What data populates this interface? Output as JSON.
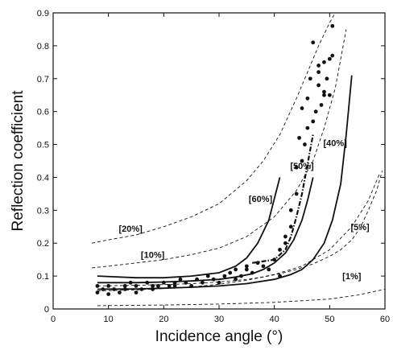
{
  "chart_data": {
    "type": "scatter",
    "title": "",
    "xlabel": "Incidence angle (°)",
    "ylabel": "Reflection coefficient",
    "xlim": [
      0,
      60
    ],
    "ylim": [
      0,
      0.9
    ],
    "xticks": [
      "0",
      "10",
      "20",
      "30",
      "40",
      "50",
      "60"
    ],
    "yticks": [
      "0",
      "0.1",
      "0.2",
      "0.3",
      "0.4",
      "0.5",
      "0.6",
      "0.7",
      "0.8",
      "0.9"
    ],
    "grid": false,
    "legend": "none",
    "annotations": [
      {
        "text": "[20%]",
        "x": 14,
        "y": 0.235
      },
      {
        "text": "[10%]",
        "x": 18,
        "y": 0.155
      },
      {
        "text": "[60%]",
        "x": 37.5,
        "y": 0.325
      },
      {
        "text": "[50%]",
        "x": 45,
        "y": 0.425
      },
      {
        "text": "[40%]",
        "x": 51,
        "y": 0.495
      },
      {
        "text": "[5%]",
        "x": 55.5,
        "y": 0.24
      },
      {
        "text": "[1%]",
        "x": 54,
        "y": 0.09
      }
    ],
    "series": [
      {
        "style": "dashed",
        "x": [
          7,
          10,
          15,
          20,
          25,
          30,
          35,
          38,
          41,
          44,
          46,
          48,
          50,
          51
        ],
        "y": [
          0.2,
          0.21,
          0.225,
          0.25,
          0.28,
          0.32,
          0.39,
          0.45,
          0.53,
          0.64,
          0.72,
          0.8,
          0.87,
          0.9
        ]
      },
      {
        "style": "dashed",
        "x": [
          7,
          10,
          15,
          20,
          25,
          30,
          35,
          40,
          44,
          47,
          49,
          51,
          52,
          53
        ],
        "y": [
          0.125,
          0.13,
          0.14,
          0.15,
          0.165,
          0.185,
          0.22,
          0.28,
          0.36,
          0.45,
          0.55,
          0.67,
          0.76,
          0.85
        ]
      },
      {
        "style": "dashed",
        "x": [
          8,
          15,
          20,
          25,
          30,
          35,
          40,
          45,
          50,
          54,
          57,
          59
        ],
        "y": [
          0.055,
          0.058,
          0.062,
          0.067,
          0.075,
          0.087,
          0.105,
          0.13,
          0.18,
          0.25,
          0.33,
          0.41
        ]
      },
      {
        "style": "dashed",
        "x": [
          8,
          20,
          30,
          40,
          50,
          55,
          60
        ],
        "y": [
          0.01,
          0.012,
          0.015,
          0.02,
          0.03,
          0.042,
          0.06
        ]
      },
      {
        "style": "dashed",
        "x": [
          8,
          15,
          20,
          25,
          30,
          35,
          38,
          41,
          44,
          47,
          50,
          52,
          54,
          55.5,
          57,
          58.5,
          59.5
        ],
        "y": [
          0.07,
          0.072,
          0.074,
          0.077,
          0.082,
          0.09,
          0.097,
          0.107,
          0.12,
          0.137,
          0.16,
          0.18,
          0.21,
          0.245,
          0.3,
          0.36,
          0.42
        ]
      },
      {
        "style": "solid",
        "x": [
          8,
          15,
          20,
          25,
          30,
          33,
          35,
          37,
          39,
          41
        ],
        "y": [
          0.1,
          0.095,
          0.095,
          0.1,
          0.11,
          0.13,
          0.155,
          0.2,
          0.27,
          0.4
        ]
      },
      {
        "style": "solid",
        "x": [
          8,
          15,
          20,
          25,
          30,
          33,
          36,
          38,
          40,
          42,
          43.5,
          45,
          46,
          47
        ],
        "y": [
          0.08,
          0.08,
          0.082,
          0.085,
          0.09,
          0.097,
          0.107,
          0.12,
          0.14,
          0.17,
          0.21,
          0.27,
          0.33,
          0.4
        ]
      },
      {
        "style": "solid",
        "x": [
          8,
          15,
          20,
          25,
          30,
          35,
          40,
          43,
          45,
          47,
          49,
          50.5,
          52,
          53,
          54
        ],
        "y": [
          0.06,
          0.061,
          0.063,
          0.066,
          0.07,
          0.077,
          0.09,
          0.105,
          0.12,
          0.15,
          0.2,
          0.27,
          0.38,
          0.53,
          0.71
        ]
      },
      {
        "style": "dashdot",
        "x": [
          36,
          40,
          42,
          43,
          44,
          45,
          46,
          47
        ],
        "y": [
          0.14,
          0.15,
          0.18,
          0.22,
          0.28,
          0.35,
          0.44,
          0.53
        ]
      },
      {
        "style": "points",
        "x": [
          8,
          8,
          9,
          10,
          10,
          11,
          12,
          13,
          13,
          14,
          15,
          15,
          16,
          17,
          18,
          18,
          19,
          20,
          21,
          22,
          22,
          23,
          24,
          25,
          26,
          27,
          28,
          29,
          30,
          31,
          32,
          33,
          33,
          34,
          35,
          35,
          36,
          37,
          38,
          39,
          40,
          41,
          41,
          42,
          42,
          43,
          43,
          44,
          44,
          44.5,
          45,
          45,
          45.5,
          46,
          46,
          46.5,
          47,
          47,
          47.5,
          48,
          48,
          48,
          48.5,
          49,
          49,
          49,
          49.5,
          50,
          50,
          50.5,
          50.5
        ],
        "y": [
          0.05,
          0.07,
          0.06,
          0.045,
          0.07,
          0.06,
          0.05,
          0.07,
          0.06,
          0.08,
          0.05,
          0.07,
          0.06,
          0.08,
          0.07,
          0.06,
          0.07,
          0.08,
          0.07,
          0.08,
          0.07,
          0.09,
          0.08,
          0.07,
          0.09,
          0.08,
          0.1,
          0.09,
          0.08,
          0.1,
          0.11,
          0.12,
          0.09,
          0.1,
          0.12,
          0.13,
          0.11,
          0.14,
          0.13,
          0.12,
          0.15,
          0.18,
          0.1,
          0.22,
          0.2,
          0.3,
          0.25,
          0.35,
          0.43,
          0.52,
          0.45,
          0.61,
          0.5,
          0.55,
          0.64,
          0.7,
          0.81,
          0.57,
          0.6,
          0.68,
          0.72,
          0.74,
          0.62,
          0.65,
          0.75,
          0.66,
          0.7,
          0.76,
          0.65,
          0.77,
          0.86
        ]
      }
    ]
  }
}
